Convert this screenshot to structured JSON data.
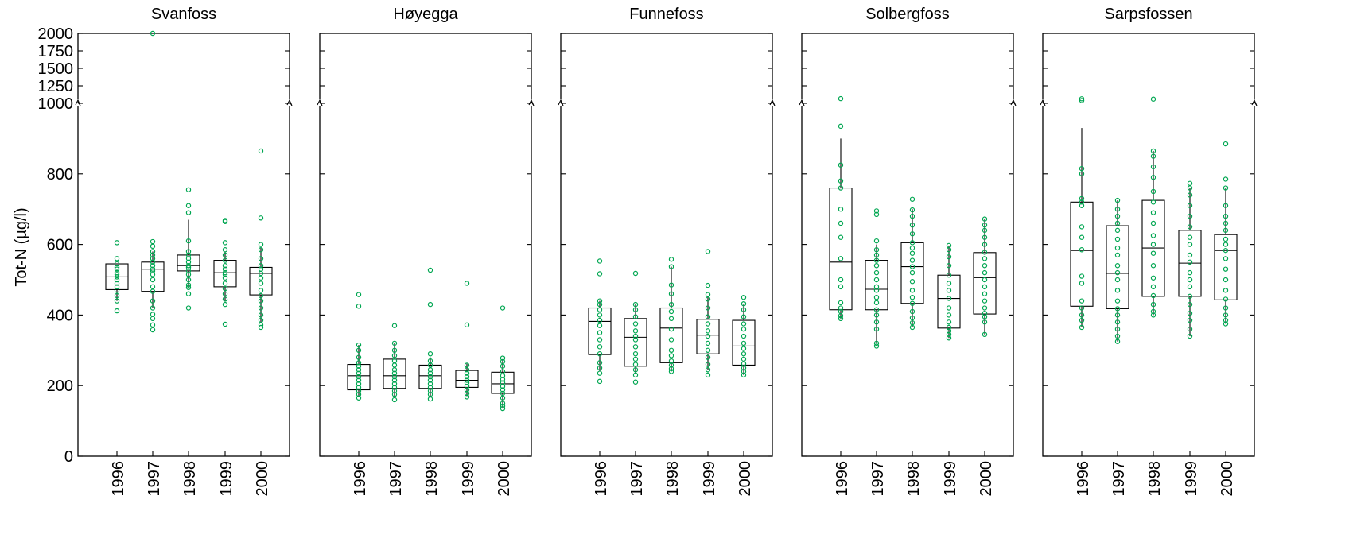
{
  "chart_data": {
    "type": "box",
    "ylabel": "Tot-N (µg/l)",
    "y_axis": {
      "lower_range": [
        0,
        1000
      ],
      "lower_ticks": [
        "0",
        "200",
        "400",
        "600",
        "800",
        "1000"
      ],
      "upper_range": [
        1000,
        2000
      ],
      "upper_ticks": [
        "1250",
        "1500",
        "1750",
        "2000"
      ],
      "break_at": 1000
    },
    "categories": [
      "1996",
      "1997",
      "1998",
      "1999",
      "2000"
    ],
    "colors": {
      "points": "#00a651",
      "boxes": "#000000"
    },
    "panels": [
      {
        "title": "Svanfoss",
        "boxes": [
          {
            "q1": 472,
            "median": 508,
            "q3": 545,
            "whisker_low": 440,
            "whisker_high": 545,
            "points": [
              412,
              440,
              455,
              470,
              480,
              490,
              500,
              508,
              515,
              520,
              530,
              535,
              545,
              560,
              605
            ]
          },
          {
            "q1": 467,
            "median": 530,
            "q3": 550,
            "whisker_low": 420,
            "whisker_high": 580,
            "points": [
              358,
              372,
              390,
              402,
              420,
              440,
              467,
              480,
              500,
              515,
              525,
              530,
              540,
              550,
              560,
              570,
              580,
              595,
              608,
              2000
            ]
          },
          {
            "q1": 525,
            "median": 540,
            "q3": 570,
            "whisker_low": 475,
            "whisker_high": 670,
            "points": [
              420,
              460,
              478,
              485,
              500,
              515,
              525,
              535,
              540,
              550,
              560,
              570,
              580,
              610,
              690,
              710,
              755
            ]
          },
          {
            "q1": 480,
            "median": 520,
            "q3": 555,
            "whisker_low": 440,
            "whisker_high": 580,
            "points": [
              374,
              430,
              445,
              460,
              475,
              490,
              505,
              515,
              520,
              530,
              540,
              555,
              570,
              585,
              605,
              665,
              668
            ]
          },
          {
            "q1": 457,
            "median": 518,
            "q3": 535,
            "whisker_low": 380,
            "whisker_high": 590,
            "points": [
              365,
              372,
              385,
              400,
              420,
              440,
              455,
              470,
              490,
              505,
              518,
              530,
              540,
              560,
              585,
              600,
              675,
              865
            ]
          }
        ]
      },
      {
        "title": "Høyegga",
        "boxes": [
          {
            "q1": 188,
            "median": 228,
            "q3": 260,
            "whisker_low": 170,
            "whisker_high": 315,
            "points": [
              165,
              175,
              185,
              195,
              205,
              215,
              225,
              235,
              245,
              255,
              265,
              280,
              300,
              315,
              425,
              458
            ]
          },
          {
            "q1": 192,
            "median": 228,
            "q3": 275,
            "whisker_low": 165,
            "whisker_high": 320,
            "points": [
              160,
              175,
              185,
              195,
              205,
              215,
              225,
              235,
              245,
              258,
              270,
              285,
              300,
              320,
              370
            ]
          },
          {
            "q1": 192,
            "median": 228,
            "q3": 258,
            "whisker_low": 170,
            "whisker_high": 280,
            "points": [
              162,
              175,
              185,
              195,
              205,
              215,
              225,
              235,
              245,
              258,
              270,
              290,
              430,
              527
            ]
          },
          {
            "q1": 195,
            "median": 215,
            "q3": 243,
            "whisker_low": 170,
            "whisker_high": 262,
            "points": [
              168,
              178,
              188,
              198,
              208,
              215,
              225,
              235,
              245,
              258,
              372,
              490
            ]
          },
          {
            "q1": 178,
            "median": 205,
            "q3": 238,
            "whisker_low": 135,
            "whisker_high": 275,
            "points": [
              135,
              142,
              150,
              165,
              178,
              188,
              198,
              208,
              218,
              228,
              240,
              255,
              268,
              278,
              420
            ]
          }
        ]
      },
      {
        "title": "Funnefoss",
        "boxes": [
          {
            "q1": 288,
            "median": 382,
            "q3": 420,
            "whisker_low": 240,
            "whisker_high": 440,
            "points": [
              212,
              235,
              250,
              265,
              290,
              310,
              330,
              350,
              370,
              385,
              400,
              415,
              430,
              440,
              517,
              553
            ]
          },
          {
            "q1": 255,
            "median": 337,
            "q3": 390,
            "whisker_low": 235,
            "whisker_high": 430,
            "points": [
              210,
              230,
              245,
              260,
              275,
              290,
              310,
              330,
              340,
              355,
              375,
              395,
              415,
              430,
              518
            ]
          },
          {
            "q1": 265,
            "median": 363,
            "q3": 420,
            "whisker_low": 240,
            "whisker_high": 537,
            "points": [
              240,
              248,
              258,
              270,
              285,
              300,
              330,
              360,
              390,
              410,
              430,
              460,
              485,
              537,
              558
            ]
          },
          {
            "q1": 290,
            "median": 343,
            "q3": 388,
            "whisker_low": 245,
            "whisker_high": 450,
            "points": [
              230,
              245,
              260,
              280,
              300,
              320,
              340,
              355,
              375,
              395,
              420,
              445,
              458,
              484,
              580
            ]
          },
          {
            "q1": 258,
            "median": 312,
            "q3": 385,
            "whisker_low": 230,
            "whisker_high": 430,
            "points": [
              230,
              240,
              250,
              262,
              275,
              290,
              305,
              320,
              340,
              360,
              375,
              395,
              415,
              432,
              450
            ]
          }
        ]
      },
      {
        "title": "Solbergfoss",
        "boxes": [
          {
            "q1": 415,
            "median": 550,
            "q3": 760,
            "whisker_low": 390,
            "whisker_high": 900,
            "points": [
              390,
              398,
              410,
              420,
              435,
              480,
              500,
              560,
              620,
              660,
              700,
              760,
              780,
              825,
              935,
              1067
            ]
          },
          {
            "q1": 415,
            "median": 473,
            "q3": 555,
            "whisker_low": 320,
            "whisker_high": 600,
            "points": [
              312,
              320,
              360,
              380,
              400,
              415,
              435,
              450,
              470,
              480,
              500,
              520,
              540,
              555,
              570,
              585,
              610,
              685,
              695
            ]
          },
          {
            "q1": 433,
            "median": 537,
            "q3": 605,
            "whisker_low": 365,
            "whisker_high": 700,
            "points": [
              365,
              378,
              392,
              410,
              433,
              450,
              470,
              495,
              520,
              537,
              555,
              575,
              590,
              605,
              630,
              655,
              680,
              698,
              728
            ]
          },
          {
            "q1": 363,
            "median": 447,
            "q3": 513,
            "whisker_low": 335,
            "whisker_high": 597,
            "points": [
              335,
              345,
              355,
              365,
              380,
              400,
              420,
              447,
              470,
              490,
              513,
              540,
              565,
              585,
              597
            ]
          },
          {
            "q1": 403,
            "median": 506,
            "q3": 577,
            "whisker_low": 345,
            "whisker_high": 672,
            "points": [
              345,
              380,
              395,
              405,
              420,
              440,
              460,
              480,
              500,
              520,
              540,
              560,
              578,
              600,
              620,
              640,
              655,
              672
            ]
          }
        ]
      },
      {
        "title": "Sarpsfossen",
        "boxes": [
          {
            "q1": 425,
            "median": 583,
            "q3": 720,
            "whisker_low": 365,
            "whisker_high": 930,
            "points": [
              365,
              385,
              400,
              420,
              440,
              490,
              510,
              585,
              620,
              650,
              710,
              720,
              730,
              800,
              815,
              1040,
              1065
            ]
          },
          {
            "q1": 418,
            "median": 518,
            "q3": 653,
            "whisker_low": 325,
            "whisker_high": 725,
            "points": [
              325,
              340,
              360,
              380,
              400,
              418,
              440,
              470,
              500,
              520,
              540,
              570,
              590,
              615,
              640,
              660,
              680,
              700,
              725
            ]
          },
          {
            "q1": 453,
            "median": 590,
            "q3": 725,
            "whisker_low": 400,
            "whisker_high": 865,
            "points": [
              400,
              410,
              430,
              455,
              480,
              505,
              540,
              575,
              600,
              625,
              660,
              690,
              720,
              750,
              790,
              820,
              850,
              865,
              1060
            ]
          },
          {
            "q1": 453,
            "median": 547,
            "q3": 640,
            "whisker_low": 340,
            "whisker_high": 760,
            "points": [
              340,
              360,
              385,
              405,
              430,
              453,
              480,
              500,
              520,
              550,
              570,
              600,
              620,
              650,
              680,
              710,
              740,
              760,
              773
            ]
          },
          {
            "q1": 443,
            "median": 583,
            "q3": 628,
            "whisker_low": 375,
            "whisker_high": 760,
            "points": [
              375,
              385,
              400,
              420,
              445,
              470,
              500,
              530,
              560,
              583,
              600,
              615,
              640,
              660,
              680,
              710,
              760,
              785,
              885
            ]
          }
        ]
      }
    ]
  }
}
